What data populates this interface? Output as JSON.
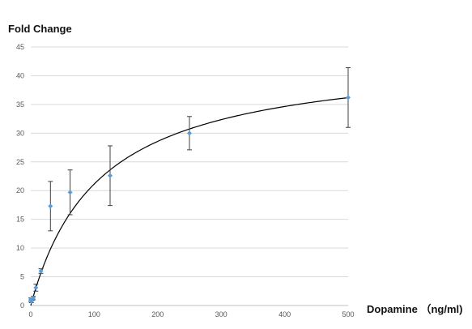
{
  "chart_data": {
    "type": "scatter",
    "xlabel": "Dopamine （ng/ml)",
    "ylabel": "Fold Change",
    "xlim": [
      0,
      500
    ],
    "ylim": [
      0,
      45
    ],
    "xticks": [
      0,
      100,
      200,
      300,
      400,
      500
    ],
    "yticks": [
      0,
      5,
      10,
      15,
      20,
      25,
      30,
      35,
      40,
      45
    ],
    "grid": "horizontal",
    "legend": "none",
    "series": [
      {
        "type": "scatter",
        "color": "#5b9bd5",
        "points": [
          {
            "x": 0,
            "y": 1.0,
            "err": 0.3
          },
          {
            "x": 1,
            "y": 0.7,
            "err": 0.2
          },
          {
            "x": 2,
            "y": 1.1,
            "err": 0.2
          },
          {
            "x": 4,
            "y": 1.3,
            "err": 0.3
          },
          {
            "x": 8,
            "y": 3.1,
            "err": 0.6
          },
          {
            "x": 16,
            "y": 6.0,
            "err": 0.4
          },
          {
            "x": 31,
            "y": 17.3,
            "err": 4.3
          },
          {
            "x": 62,
            "y": 19.7,
            "err": 3.9
          },
          {
            "x": 125,
            "y": 22.6,
            "err": 5.2
          },
          {
            "x": 250,
            "y": 30.0,
            "err": 2.9
          },
          {
            "x": 500,
            "y": 36.2,
            "err": 5.2
          }
        ]
      },
      {
        "type": "line",
        "color": "#000000",
        "fit": {
          "kind": "hyperbolic",
          "max": 44.0,
          "k": 108.0
        }
      }
    ]
  }
}
